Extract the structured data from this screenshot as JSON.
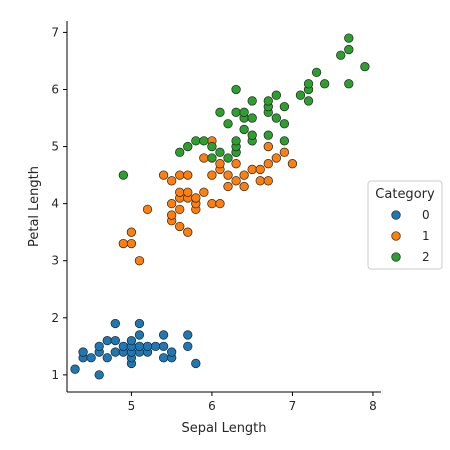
{
  "chart_data": {
    "type": "scatter",
    "xlabel": "Sepal Length",
    "ylabel": "Petal Length",
    "xlim": [
      4.2,
      8.1
    ],
    "ylim": [
      0.7,
      7.2
    ],
    "xticks": [
      5,
      6,
      7,
      8
    ],
    "yticks": [
      1,
      2,
      3,
      4,
      5,
      6,
      7
    ],
    "legend": {
      "title": "Category",
      "placement": "right"
    },
    "series": [
      {
        "name": "0",
        "color": "#1f77b4",
        "points": [
          [
            4.3,
            1.1
          ],
          [
            4.4,
            1.3
          ],
          [
            4.4,
            1.4
          ],
          [
            4.5,
            1.3
          ],
          [
            4.6,
            1.0
          ],
          [
            4.6,
            1.4
          ],
          [
            4.6,
            1.5
          ],
          [
            4.7,
            1.3
          ],
          [
            4.7,
            1.6
          ],
          [
            4.8,
            1.4
          ],
          [
            4.8,
            1.6
          ],
          [
            4.8,
            1.9
          ],
          [
            4.9,
            1.4
          ],
          [
            4.9,
            1.5
          ],
          [
            5.0,
            1.2
          ],
          [
            5.0,
            1.3
          ],
          [
            5.0,
            1.4
          ],
          [
            5.0,
            1.5
          ],
          [
            5.0,
            1.6
          ],
          [
            5.1,
            1.4
          ],
          [
            5.1,
            1.5
          ],
          [
            5.1,
            1.7
          ],
          [
            5.1,
            1.9
          ],
          [
            5.2,
            1.4
          ],
          [
            5.2,
            1.5
          ],
          [
            5.3,
            1.5
          ],
          [
            5.4,
            1.3
          ],
          [
            5.4,
            1.5
          ],
          [
            5.4,
            1.7
          ],
          [
            5.5,
            1.3
          ],
          [
            5.5,
            1.4
          ],
          [
            5.7,
            1.5
          ],
          [
            5.7,
            1.7
          ],
          [
            5.8,
            1.2
          ]
        ]
      },
      {
        "name": "1",
        "color": "#ff7f0e",
        "points": [
          [
            4.9,
            3.3
          ],
          [
            5.0,
            3.3
          ],
          [
            5.0,
            3.5
          ],
          [
            5.1,
            3.0
          ],
          [
            5.2,
            3.9
          ],
          [
            5.4,
            4.5
          ],
          [
            5.5,
            3.7
          ],
          [
            5.5,
            3.8
          ],
          [
            5.5,
            4.0
          ],
          [
            5.5,
            4.4
          ],
          [
            5.6,
            3.6
          ],
          [
            5.6,
            3.9
          ],
          [
            5.6,
            4.1
          ],
          [
            5.6,
            4.2
          ],
          [
            5.6,
            4.5
          ],
          [
            5.7,
            3.5
          ],
          [
            5.7,
            4.1
          ],
          [
            5.7,
            4.2
          ],
          [
            5.7,
            4.5
          ],
          [
            5.8,
            3.9
          ],
          [
            5.8,
            4.0
          ],
          [
            5.8,
            4.1
          ],
          [
            5.9,
            4.2
          ],
          [
            5.9,
            4.8
          ],
          [
            6.0,
            4.0
          ],
          [
            6.0,
            4.5
          ],
          [
            6.0,
            5.1
          ],
          [
            6.1,
            4.0
          ],
          [
            6.1,
            4.6
          ],
          [
            6.1,
            4.7
          ],
          [
            6.2,
            4.3
          ],
          [
            6.2,
            4.5
          ],
          [
            6.3,
            4.4
          ],
          [
            6.3,
            4.7
          ],
          [
            6.3,
            4.9
          ],
          [
            6.4,
            4.3
          ],
          [
            6.4,
            4.5
          ],
          [
            6.5,
            4.6
          ],
          [
            6.6,
            4.4
          ],
          [
            6.6,
            4.6
          ],
          [
            6.7,
            4.4
          ],
          [
            6.7,
            4.7
          ],
          [
            6.7,
            5.0
          ],
          [
            6.8,
            4.8
          ],
          [
            6.9,
            4.9
          ],
          [
            7.0,
            4.7
          ]
        ]
      },
      {
        "name": "2",
        "color": "#2ca02c",
        "points": [
          [
            4.9,
            4.5
          ],
          [
            5.6,
            4.9
          ],
          [
            5.7,
            5.0
          ],
          [
            5.8,
            5.1
          ],
          [
            5.9,
            5.1
          ],
          [
            6.0,
            4.8
          ],
          [
            6.0,
            5.0
          ],
          [
            6.1,
            4.9
          ],
          [
            6.1,
            5.6
          ],
          [
            6.2,
            4.8
          ],
          [
            6.2,
            5.4
          ],
          [
            6.3,
            4.9
          ],
          [
            6.3,
            5.0
          ],
          [
            6.3,
            5.1
          ],
          [
            6.3,
            5.6
          ],
          [
            6.3,
            6.0
          ],
          [
            6.4,
            5.3
          ],
          [
            6.4,
            5.5
          ],
          [
            6.4,
            5.6
          ],
          [
            6.5,
            5.1
          ],
          [
            6.5,
            5.2
          ],
          [
            6.5,
            5.5
          ],
          [
            6.5,
            5.8
          ],
          [
            6.7,
            5.2
          ],
          [
            6.7,
            5.6
          ],
          [
            6.7,
            5.7
          ],
          [
            6.7,
            5.8
          ],
          [
            6.8,
            5.5
          ],
          [
            6.8,
            5.9
          ],
          [
            6.9,
            5.1
          ],
          [
            6.9,
            5.4
          ],
          [
            6.9,
            5.7
          ],
          [
            7.1,
            5.9
          ],
          [
            7.2,
            5.8
          ],
          [
            7.2,
            6.0
          ],
          [
            7.2,
            6.1
          ],
          [
            7.3,
            6.3
          ],
          [
            7.4,
            6.1
          ],
          [
            7.6,
            6.6
          ],
          [
            7.7,
            6.1
          ],
          [
            7.7,
            6.7
          ],
          [
            7.7,
            6.9
          ],
          [
            7.9,
            6.4
          ]
        ]
      }
    ]
  }
}
